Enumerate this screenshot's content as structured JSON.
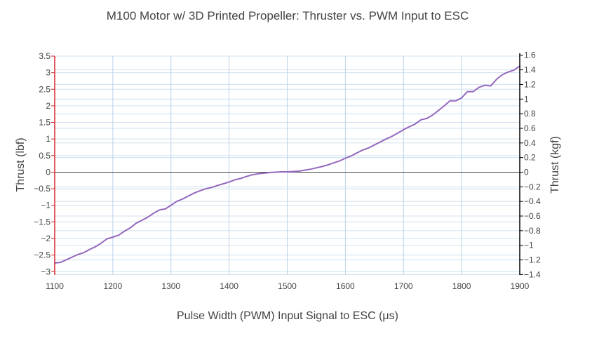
{
  "chart_data": {
    "type": "line",
    "title": "M100 Motor w/ 3D Printed Propeller: Thruster vs. PWM Input to ESC",
    "xlabel": "Pulse Width (PWM) Input Signal to ESC (μs)",
    "ylabel": "Thrust (lbf)",
    "y2label": "Thrust (kgf)",
    "xlim": [
      1100,
      1900
    ],
    "ylim": [
      -3.1,
      3.5
    ],
    "y2lim": [
      -1.406,
      1.588
    ],
    "x_ticks": [
      "1100",
      "1200",
      "1300",
      "1400",
      "1500",
      "1600",
      "1700",
      "1800",
      "1900"
    ],
    "x_tick_values": [
      1100,
      1200,
      1300,
      1400,
      1500,
      1600,
      1700,
      1800,
      1900
    ],
    "y_ticks": [
      "3.5",
      "3",
      "2.5",
      "2",
      "1.5",
      "1",
      "0.5",
      "0",
      "−0.5",
      "−1",
      "−1.5",
      "−2",
      "−2.5",
      "−3"
    ],
    "y_tick_values": [
      3.5,
      3,
      2.5,
      2,
      1.5,
      1,
      0.5,
      0,
      -0.5,
      -1,
      -1.5,
      -2,
      -2.5,
      -3
    ],
    "y2_ticks": [
      "1.6",
      "1.4",
      "1.2",
      "1",
      "0.8",
      "0.6",
      "0.4",
      "0.2",
      "0",
      "−0.2",
      "−0.4",
      "−0.6",
      "−0.8",
      "−1",
      "−1.2",
      "−1.4"
    ],
    "y2_tick_values": [
      1.6,
      1.4,
      1.2,
      1,
      0.8,
      0.6,
      0.4,
      0.2,
      0,
      -0.2,
      -0.4,
      -0.6,
      -0.8,
      -1,
      -1.2,
      -1.4
    ],
    "grid": true,
    "line_color": "#9467bd",
    "left_axis_color": "#d62728",
    "right_axis_color": "#000000",
    "zero_line_color": "#444444",
    "series": [
      {
        "x": [
          1100,
          1110,
          1120,
          1130,
          1140,
          1150,
          1160,
          1170,
          1180,
          1190,
          1200,
          1210,
          1220,
          1230,
          1240,
          1250,
          1260,
          1270,
          1280,
          1290,
          1300,
          1310,
          1320,
          1330,
          1340,
          1350,
          1360,
          1370,
          1380,
          1390,
          1400,
          1410,
          1420,
          1430,
          1440,
          1450,
          1460,
          1470,
          1480,
          1490,
          1500,
          1510,
          1520,
          1530,
          1540,
          1550,
          1560,
          1570,
          1580,
          1590,
          1600,
          1610,
          1620,
          1630,
          1640,
          1650,
          1660,
          1670,
          1680,
          1690,
          1700,
          1710,
          1720,
          1730,
          1740,
          1750,
          1760,
          1770,
          1780,
          1790,
          1800,
          1810,
          1820,
          1830,
          1840,
          1850,
          1860,
          1870,
          1880,
          1890,
          1900
        ],
        "y": [
          -2.74,
          -2.72,
          -2.64,
          -2.56,
          -2.48,
          -2.43,
          -2.33,
          -2.25,
          -2.14,
          -2.01,
          -1.96,
          -1.9,
          -1.78,
          -1.68,
          -1.54,
          -1.45,
          -1.36,
          -1.24,
          -1.14,
          -1.11,
          -1.0,
          -0.88,
          -0.81,
          -0.72,
          -0.63,
          -0.56,
          -0.5,
          -0.46,
          -0.4,
          -0.35,
          -0.3,
          -0.23,
          -0.19,
          -0.13,
          -0.08,
          -0.05,
          -0.03,
          -0.01,
          0.0,
          0.01,
          0.01,
          0.02,
          0.03,
          0.06,
          0.09,
          0.13,
          0.17,
          0.22,
          0.28,
          0.34,
          0.42,
          0.49,
          0.58,
          0.67,
          0.73,
          0.82,
          0.91,
          1.0,
          1.08,
          1.18,
          1.28,
          1.37,
          1.45,
          1.58,
          1.62,
          1.72,
          1.86,
          2.0,
          2.15,
          2.15,
          2.24,
          2.43,
          2.43,
          2.56,
          2.62,
          2.6,
          2.8,
          2.94,
          3.02,
          3.08,
          3.2
        ]
      }
    ]
  }
}
